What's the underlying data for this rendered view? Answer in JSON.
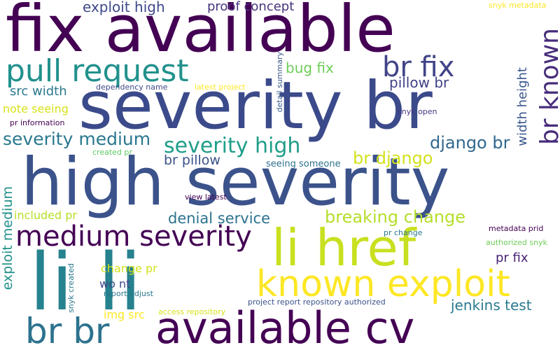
{
  "words": [
    {
      "text": "fix available",
      "color": "#440154",
      "vertical": false
    },
    {
      "text": "severity br",
      "color": "#3b4a8a",
      "vertical": false
    },
    {
      "text": "high severity",
      "color": "#3b528b",
      "vertical": false
    },
    {
      "text": "li li",
      "color": "#26828e",
      "vertical": false
    },
    {
      "text": "available cv",
      "color": "#440154",
      "vertical": false
    },
    {
      "text": "li href",
      "color": "#c8e020",
      "vertical": false
    },
    {
      "text": "known exploit",
      "color": "#fde725",
      "vertical": false
    },
    {
      "text": "pull request",
      "color": "#21918c",
      "vertical": false
    },
    {
      "text": "br br",
      "color": "#2c728e",
      "vertical": false
    },
    {
      "text": "medium severity",
      "color": "#440154",
      "vertical": false
    },
    {
      "text": "br fix",
      "color": "#414487",
      "vertical": false
    },
    {
      "text": "br known",
      "color": "#472d7b",
      "vertical": true
    },
    {
      "text": "severity high",
      "color": "#1f9e89",
      "vertical": false
    },
    {
      "text": "severity medium",
      "color": "#2a788e",
      "vertical": false
    },
    {
      "text": "django br",
      "color": "#31688e",
      "vertical": false
    },
    {
      "text": "breaking change",
      "color": "#b5de2b",
      "vertical": false
    },
    {
      "text": "br django",
      "color": "#d2e21b",
      "vertical": false
    },
    {
      "text": "denial service",
      "color": "#2c728e",
      "vertical": false
    },
    {
      "text": "exploit high",
      "color": "#3e4989",
      "vertical": false
    },
    {
      "text": "proof concept",
      "color": "#46337e",
      "vertical": false
    },
    {
      "text": "bug fix",
      "color": "#6ece58",
      "vertical": false
    },
    {
      "text": "pillow br",
      "color": "#404387",
      "vertical": false
    },
    {
      "text": "src width",
      "color": "#2a788e",
      "vertical": false
    },
    {
      "text": "br pillow",
      "color": "#3b528b",
      "vertical": false
    },
    {
      "text": "width height",
      "color": "#39568c",
      "vertical": true
    },
    {
      "text": "exploit medium",
      "color": "#21918c",
      "vertical": true
    },
    {
      "text": "jenkins test",
      "color": "#2a788e",
      "vertical": false
    },
    {
      "text": "pr fix",
      "color": "#482475",
      "vertical": false
    },
    {
      "text": "note seeing",
      "color": "#d8e219",
      "vertical": false
    },
    {
      "text": "included pr",
      "color": "#b8de29",
      "vertical": false
    },
    {
      "text": "change pr",
      "color": "#d2e21b",
      "vertical": false
    },
    {
      "text": "wo nt",
      "color": "#3e4989",
      "vertical": false
    },
    {
      "text": "img src",
      "color": "#fde725",
      "vertical": false
    },
    {
      "text": "seeing someone",
      "color": "#2c728e",
      "vertical": false
    },
    {
      "text": "dependency name",
      "color": "#3e4989",
      "vertical": false
    },
    {
      "text": "latest project",
      "color": "#fde725",
      "vertical": false
    },
    {
      "text": "pr information",
      "color": "#440154",
      "vertical": false
    },
    {
      "text": "created pr",
      "color": "#5ec962",
      "vertical": false
    },
    {
      "text": "detail summary",
      "color": "#38598c",
      "vertical": true
    },
    {
      "text": "snyk open",
      "color": "#443983",
      "vertical": false
    },
    {
      "text": "snyk metadata",
      "color": "#fde725",
      "vertical": false
    },
    {
      "text": "view latest",
      "color": "#440154",
      "vertical": false
    },
    {
      "text": "pr change",
      "color": "#2a788e",
      "vertical": false
    },
    {
      "text": "metadata prid",
      "color": "#440154",
      "vertical": false
    },
    {
      "text": "authorized snyk",
      "color": "#6ece58",
      "vertical": false
    },
    {
      "text": "snyk created",
      "color": "#2a788e",
      "vertical": true
    },
    {
      "text": "report adjust",
      "color": "#2a788e",
      "vertical": false
    },
    {
      "text": "access repository",
      "color": "#d8e219",
      "vertical": false
    },
    {
      "text": "project report repository authorized",
      "color": "#3b528b",
      "vertical": false
    }
  ]
}
